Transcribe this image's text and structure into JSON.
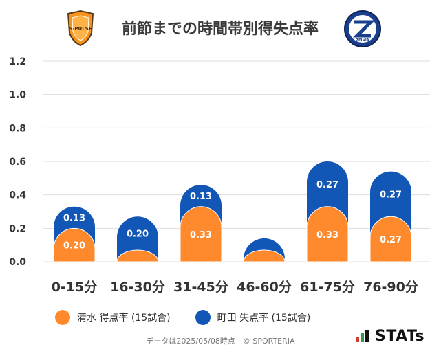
{
  "header": {
    "title": "前節までの時間帯別得失点率",
    "left_logo_text": "S-PULSE",
    "right_logo_text": "ZELVIA"
  },
  "colors": {
    "shimizu": "#ff8a2e",
    "machida": "#1256b6",
    "grid": "#dddddd",
    "text": "#333333"
  },
  "chart_data": {
    "type": "bar",
    "stacked": true,
    "categories": [
      "0-15分",
      "16-30分",
      "31-45分",
      "46-60分",
      "61-75分",
      "76-90分"
    ],
    "series": [
      {
        "name": "清水 得点率 (15試合)",
        "values": [
          0.2,
          0.07,
          0.33,
          0.07,
          0.33,
          0.27
        ],
        "labels": [
          "0.20",
          "",
          "0.33",
          "",
          "0.33",
          "0.27"
        ]
      },
      {
        "name": "町田 失点率 (15試合)",
        "values": [
          0.13,
          0.2,
          0.13,
          0.07,
          0.27,
          0.27
        ],
        "labels": [
          "0.13",
          "0.20",
          "0.13",
          "",
          "0.27",
          "0.27"
        ]
      }
    ],
    "yticks": [
      "0.0",
      "0.2",
      "0.4",
      "0.6",
      "0.8",
      "1.0",
      "1.2"
    ],
    "ylim": [
      0,
      1.2
    ],
    "grid": true,
    "legend_position": "bottom-left"
  },
  "legend": {
    "items": [
      {
        "label": "清水 得点率 (15試合)"
      },
      {
        "label": "町田 失点率 (15試合)"
      }
    ]
  },
  "footer": {
    "text": "データは2025/05/08時点　© SPORTERIA"
  },
  "brand": {
    "name": "STATs"
  }
}
